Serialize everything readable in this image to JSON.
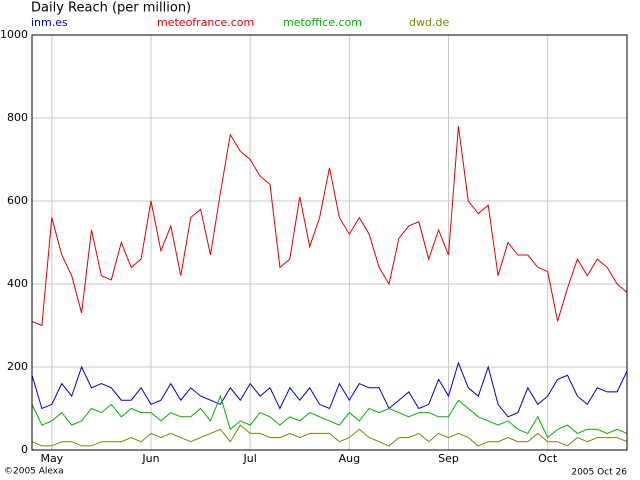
{
  "chart_data": {
    "type": "line",
    "title": "Daily Reach (per million)",
    "credit": "©2005 Alexa",
    "date_label": "2005 Oct 26",
    "categories": [
      null,
      null,
      "May",
      null,
      null,
      null,
      null,
      null,
      null,
      null,
      null,
      null,
      "Jun",
      null,
      null,
      null,
      null,
      null,
      null,
      null,
      null,
      null,
      "Jul",
      null,
      null,
      null,
      null,
      null,
      null,
      null,
      null,
      null,
      "Aug",
      null,
      null,
      null,
      null,
      null,
      null,
      null,
      null,
      null,
      "Sep",
      null,
      null,
      null,
      null,
      null,
      null,
      null,
      null,
      null,
      "Oct",
      null,
      null,
      null,
      null,
      null,
      null,
      null,
      null
    ],
    "ylim": [
      0,
      1000
    ],
    "yticks": [
      0,
      200,
      400,
      600,
      800,
      1000
    ],
    "grid": true,
    "series": [
      {
        "name": "inm.es",
        "color": "#0000c0",
        "values": [
          180,
          100,
          110,
          160,
          130,
          200,
          150,
          160,
          150,
          120,
          120,
          150,
          110,
          120,
          160,
          120,
          150,
          130,
          120,
          110,
          150,
          120,
          160,
          130,
          150,
          100,
          150,
          120,
          150,
          110,
          100,
          160,
          120,
          160,
          150,
          150,
          100,
          120,
          140,
          100,
          110,
          170,
          130,
          210,
          150,
          130,
          200,
          110,
          80,
          90,
          150,
          110,
          130,
          170,
          180,
          130,
          110,
          150,
          140,
          140,
          190
        ]
      },
      {
        "name": "meteofrance.com",
        "color": "#e00000",
        "values": [
          310,
          300,
          560,
          470,
          420,
          330,
          530,
          420,
          410,
          500,
          440,
          460,
          600,
          480,
          540,
          420,
          560,
          580,
          470,
          620,
          760,
          720,
          700,
          660,
          640,
          440,
          460,
          610,
          490,
          560,
          680,
          560,
          520,
          560,
          520,
          440,
          400,
          510,
          540,
          550,
          460,
          530,
          470,
          780,
          600,
          570,
          590,
          420,
          500,
          470,
          470,
          440,
          430,
          310,
          390,
          460,
          420,
          460,
          440,
          400,
          380
        ]
      },
      {
        "name": "metoffice.com",
        "color": "#00b000",
        "values": [
          110,
          60,
          70,
          90,
          60,
          70,
          100,
          90,
          110,
          80,
          100,
          90,
          90,
          70,
          90,
          80,
          80,
          100,
          70,
          130,
          50,
          70,
          60,
          90,
          80,
          60,
          80,
          70,
          90,
          80,
          70,
          60,
          90,
          70,
          100,
          90,
          100,
          90,
          80,
          90,
          90,
          80,
          80,
          120,
          100,
          80,
          70,
          60,
          70,
          50,
          40,
          80,
          30,
          50,
          60,
          40,
          50,
          50,
          40,
          50,
          40
        ]
      },
      {
        "name": "dwd.de",
        "color": "#808000",
        "values": [
          20,
          10,
          10,
          20,
          20,
          10,
          10,
          20,
          20,
          20,
          30,
          20,
          40,
          30,
          40,
          30,
          20,
          30,
          40,
          50,
          20,
          60,
          40,
          40,
          30,
          30,
          40,
          30,
          40,
          40,
          40,
          20,
          30,
          50,
          30,
          20,
          10,
          30,
          30,
          40,
          20,
          40,
          30,
          40,
          30,
          10,
          20,
          20,
          30,
          20,
          20,
          40,
          20,
          20,
          10,
          30,
          20,
          30,
          30,
          30,
          20
        ]
      }
    ]
  }
}
